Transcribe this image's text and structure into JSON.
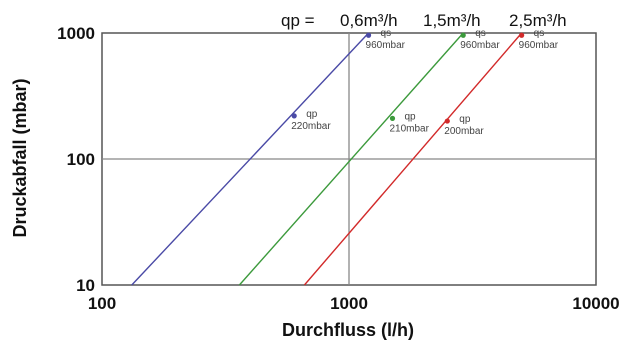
{
  "chart_data": {
    "type": "line",
    "xlabel": "Durchfluss (l/h)",
    "ylabel": "Druckabfall (mbar)",
    "xscale": "log",
    "yscale": "log",
    "xlim": [
      100,
      10000
    ],
    "ylim": [
      10,
      1000
    ],
    "x_ticks": [
      "100",
      "1000",
      "10000"
    ],
    "y_ticks": [
      "10",
      "100",
      "1000"
    ],
    "grid": true,
    "header": {
      "prefix": "qp =",
      "labels": [
        "0,6m³/h",
        "1,5m³/h",
        "2,5m³/h"
      ]
    },
    "series": [
      {
        "name": "0,6m³/h",
        "color": "#4a4aa6",
        "x": [
          132,
          1200
        ],
        "y": [
          10,
          1000
        ],
        "points": [
          {
            "x": 600,
            "y": 220,
            "label_top": "qp",
            "label_bottom": "220mbar"
          },
          {
            "x": 1200,
            "y": 960,
            "label_top": "qs",
            "label_bottom": "960mbar"
          }
        ]
      },
      {
        "name": "1,5m³/h",
        "color": "#3c9a3c",
        "x": [
          360,
          2900
        ],
        "y": [
          10,
          1000
        ],
        "points": [
          {
            "x": 1500,
            "y": 210,
            "label_top": "qp",
            "label_bottom": "210mbar"
          },
          {
            "x": 2900,
            "y": 960,
            "label_top": "qs",
            "label_bottom": "960mbar"
          }
        ]
      },
      {
        "name": "2,5m³/h",
        "color": "#d22a2a",
        "x": [
          660,
          5000
        ],
        "y": [
          10,
          1000
        ],
        "points": [
          {
            "x": 2500,
            "y": 200,
            "label_top": "qp",
            "label_bottom": "200mbar"
          },
          {
            "x": 5000,
            "y": 960,
            "label_top": "qs",
            "label_bottom": "960mbar"
          }
        ]
      }
    ]
  }
}
